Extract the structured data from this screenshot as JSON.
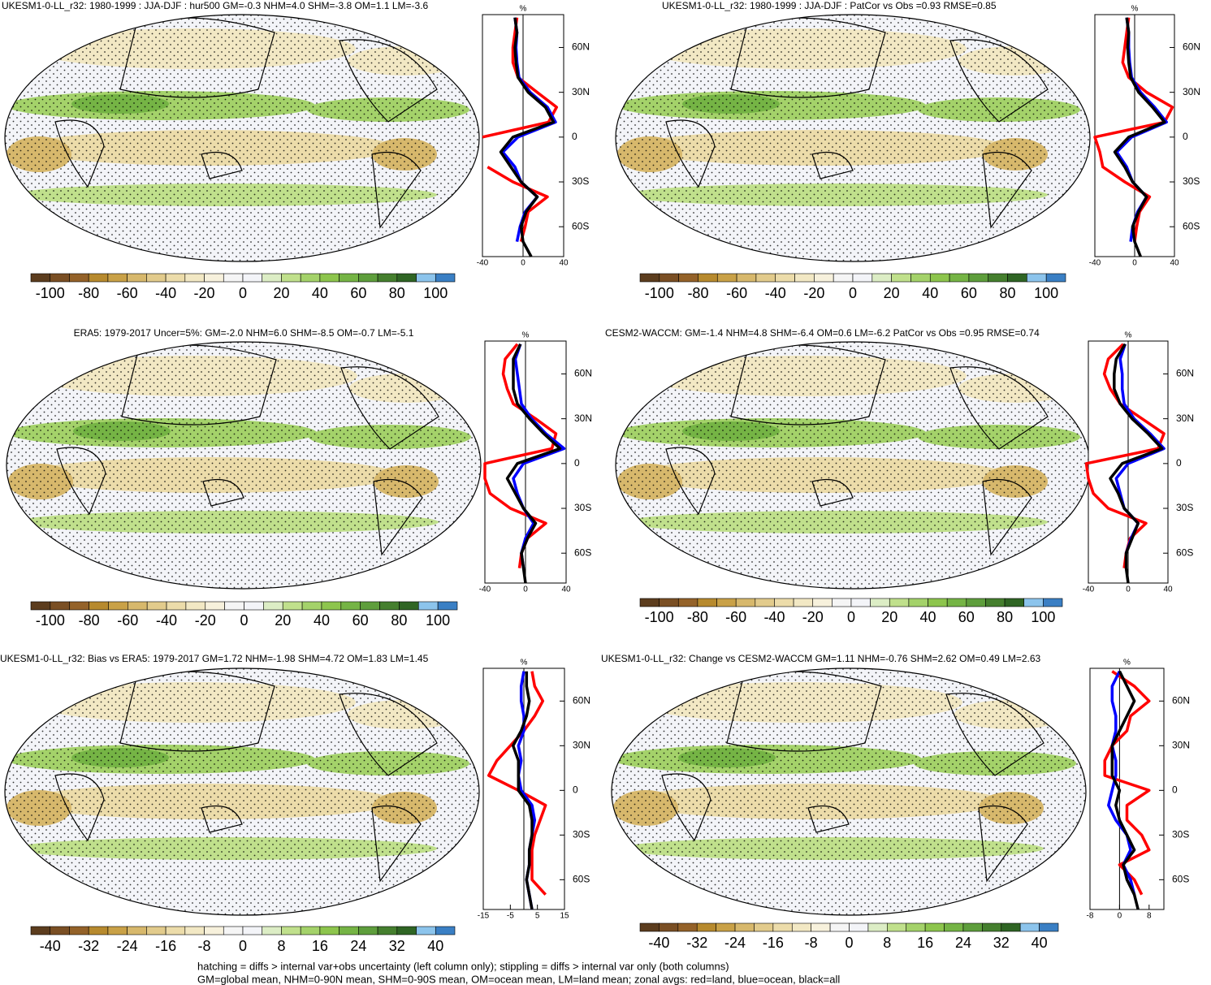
{
  "chart_data": [
    {
      "type": "line",
      "title": "UKESM1-0-LL_r32: 1980-1999 : JJA-DJF : hur500 GM=-0.3 NHM=4.0 SHM=-3.8 OM=1.1 LM=-3.6",
      "unit": "%",
      "y": [
        80,
        70,
        60,
        50,
        40,
        30,
        20,
        10,
        0,
        -10,
        -20,
        -30,
        -40,
        -50,
        -60,
        -70,
        -80
      ],
      "ylim": [
        -80,
        82
      ],
      "yticks": [
        {
          "value": 60,
          "label": "60N"
        },
        {
          "value": 30,
          "label": "30N"
        },
        0,
        {
          "value": -30,
          "label": "30S"
        },
        {
          "value": -60,
          "label": "60S"
        }
      ],
      "xlim": [
        -40,
        40
      ],
      "xticks": [
        -40,
        0,
        40
      ],
      "series": [
        {
          "color": "#ff0000",
          "values": [
            -6,
            -8,
            -10,
            -10,
            -5,
            14,
            33,
            25,
            -40,
            null,
            -35,
            -10,
            24,
            5,
            2,
            -2,
            null
          ]
        },
        {
          "color": "#0000ff",
          "values": [
            -8,
            -6,
            -7,
            -6,
            -4,
            7,
            24,
            32,
            -5,
            -20,
            -8,
            -2,
            14,
            2,
            -3,
            -6,
            null
          ]
        },
        {
          "color": "#000000",
          "values": [
            -8,
            -6,
            -8,
            -7,
            -5,
            5,
            22,
            30,
            -10,
            -22,
            -12,
            -2,
            14,
            3,
            -2,
            0,
            8
          ]
        }
      ],
      "colorbar": {
        "lim": [
          -110,
          110
        ],
        "ticks": [
          -100,
          -80,
          -60,
          -40,
          -20,
          0,
          20,
          40,
          60,
          80,
          100
        ],
        "colors": [
          "#5c3d1e",
          "#7a4f24",
          "#946229",
          "#b78a2e",
          "#c9a147",
          "#d7b86c",
          "#e2cb8c",
          "#ecdcaa",
          "#f2e8c4",
          "#f7f1dc",
          "#f5f5f5",
          "#f3f4f8",
          "#dcedc5",
          "#c0e08c",
          "#a4d26a",
          "#8dc54d",
          "#75b445",
          "#5e9e3c",
          "#457f2e",
          "#2f6524",
          "#8cc4ec",
          "#3a7fc4"
        ]
      }
    },
    {
      "type": "line",
      "title": "UKESM1-0-LL_r32: 1980-1999 : JJA-DJF : PatCor vs Obs =0.93 RMSE=0.85",
      "unit": "%",
      "y": [
        80,
        70,
        60,
        50,
        40,
        30,
        20,
        10,
        0,
        -10,
        -20,
        -30,
        -40,
        -50,
        -60,
        -70,
        -80
      ],
      "ylim": [
        -80,
        82
      ],
      "yticks": [
        {
          "value": 60,
          "label": "60N"
        },
        {
          "value": 30,
          "label": "30N"
        },
        0,
        {
          "value": -30,
          "label": "30S"
        },
        {
          "value": -60,
          "label": "60S"
        }
      ],
      "xlim": [
        -40,
        40
      ],
      "xticks": [
        -40,
        0,
        40
      ],
      "series": [
        {
          "color": "#ff0000",
          "values": [
            -6,
            -8,
            -10,
            -12,
            -6,
            12,
            38,
            30,
            -40,
            -35,
            -32,
            -10,
            15,
            5,
            2,
            0,
            null
          ]
        },
        {
          "color": "#0000ff",
          "values": [
            -8,
            -6,
            -6,
            -5,
            -3,
            6,
            20,
            32,
            -3,
            -18,
            -8,
            -2,
            12,
            3,
            -2,
            -4,
            null
          ]
        },
        {
          "color": "#000000",
          "values": [
            -8,
            -6,
            -7,
            -6,
            -4,
            4,
            18,
            30,
            -6,
            -20,
            -10,
            -2,
            12,
            4,
            -2,
            0,
            6
          ]
        }
      ],
      "colorbar": {
        "lim": [
          -110,
          110
        ],
        "ticks": [
          -100,
          -80,
          -60,
          -40,
          -20,
          0,
          20,
          40,
          60,
          80,
          100
        ],
        "colors": [
          "#5c3d1e",
          "#7a4f24",
          "#946229",
          "#b78a2e",
          "#c9a147",
          "#d7b86c",
          "#e2cb8c",
          "#ecdcaa",
          "#f2e8c4",
          "#f7f1dc",
          "#f5f5f5",
          "#f3f4f8",
          "#dcedc5",
          "#c0e08c",
          "#a4d26a",
          "#8dc54d",
          "#75b445",
          "#5e9e3c",
          "#457f2e",
          "#2f6524",
          "#8cc4ec",
          "#3a7fc4"
        ]
      }
    },
    {
      "type": "line",
      "title": "ERA5: 1979-2017 Uncer=5%: GM=-2.0 NHM=6.0 SHM=-8.5 OM=-0.7 LM=-5.1",
      "unit": "%",
      "y": [
        80,
        70,
        60,
        50,
        40,
        30,
        20,
        10,
        0,
        -10,
        -20,
        -30,
        -40,
        -50,
        -60,
        -70,
        -80
      ],
      "ylim": [
        -80,
        82
      ],
      "yticks": [
        {
          "value": 60,
          "label": "60N"
        },
        {
          "value": 30,
          "label": "30N"
        },
        0,
        {
          "value": -30,
          "label": "30S"
        },
        {
          "value": -60,
          "label": "60S"
        }
      ],
      "xlim": [
        -40,
        40
      ],
      "xticks": [
        -40,
        0,
        40
      ],
      "series": [
        {
          "color": "#ff0000",
          "values": [
            -8,
            -20,
            -22,
            -18,
            -12,
            10,
            30,
            26,
            -40,
            -40,
            -35,
            -15,
            20,
            2,
            -4,
            -6,
            null
          ]
        },
        {
          "color": "#0000ff",
          "values": [
            -5,
            -10,
            -8,
            -6,
            -4,
            6,
            20,
            38,
            -2,
            -12,
            -8,
            -2,
            8,
            0,
            -4,
            -2,
            null
          ]
        },
        {
          "color": "#000000",
          "values": [
            -5,
            -12,
            -12,
            -12,
            -8,
            4,
            18,
            34,
            -8,
            -18,
            -10,
            -2,
            10,
            2,
            -4,
            -2,
            0
          ]
        }
      ],
      "colorbar": {
        "lim": [
          -110,
          110
        ],
        "ticks": [
          -100,
          -80,
          -60,
          -40,
          -20,
          0,
          20,
          40,
          60,
          80,
          100
        ],
        "colors": [
          "#5c3d1e",
          "#7a4f24",
          "#946229",
          "#b78a2e",
          "#c9a147",
          "#d7b86c",
          "#e2cb8c",
          "#ecdcaa",
          "#f2e8c4",
          "#f7f1dc",
          "#f5f5f5",
          "#f3f4f8",
          "#dcedc5",
          "#c0e08c",
          "#a4d26a",
          "#8dc54d",
          "#75b445",
          "#5e9e3c",
          "#457f2e",
          "#2f6524",
          "#8cc4ec",
          "#3a7fc4"
        ]
      }
    },
    {
      "type": "line",
      "title": "CESM2-WACCM: GM=-1.4 NHM=4.8 SHM=-6.4 OM=0.6 LM=-6.2 PatCor vs Obs =0.95 RMSE=0.74",
      "unit": "%",
      "y": [
        80,
        70,
        60,
        50,
        40,
        30,
        20,
        10,
        0,
        -10,
        -20,
        -30,
        -40,
        -50,
        -60,
        -70,
        -80
      ],
      "ylim": [
        -80,
        82
      ],
      "yticks": [
        {
          "value": 60,
          "label": "60N"
        },
        {
          "value": 30,
          "label": "30N"
        },
        0,
        {
          "value": -30,
          "label": "30S"
        },
        {
          "value": -60,
          "label": "60S"
        }
      ],
      "xlim": [
        -40,
        40
      ],
      "xticks": [
        -40,
        0,
        40
      ],
      "series": [
        {
          "color": "#ff0000",
          "values": [
            -5,
            -20,
            -24,
            -18,
            -8,
            14,
            36,
            30,
            -42,
            -40,
            -35,
            -20,
            18,
            2,
            -2,
            -4,
            null
          ]
        },
        {
          "color": "#0000ff",
          "values": [
            -3,
            -8,
            -6,
            -6,
            -4,
            6,
            22,
            36,
            0,
            -12,
            -8,
            -4,
            10,
            3,
            -2,
            null,
            null
          ]
        },
        {
          "color": "#000000",
          "values": [
            -3,
            -12,
            -14,
            -14,
            -8,
            4,
            20,
            34,
            -6,
            -18,
            -10,
            -4,
            10,
            4,
            -2,
            -2,
            0
          ]
        }
      ],
      "colorbar": {
        "lim": [
          -110,
          110
        ],
        "ticks": [
          -100,
          -80,
          -60,
          -40,
          -20,
          0,
          20,
          40,
          60,
          80,
          100
        ],
        "colors": [
          "#5c3d1e",
          "#7a4f24",
          "#946229",
          "#b78a2e",
          "#c9a147",
          "#d7b86c",
          "#e2cb8c",
          "#ecdcaa",
          "#f2e8c4",
          "#f7f1dc",
          "#f5f5f5",
          "#f3f4f8",
          "#dcedc5",
          "#c0e08c",
          "#a4d26a",
          "#8dc54d",
          "#75b445",
          "#5e9e3c",
          "#457f2e",
          "#2f6524",
          "#8cc4ec",
          "#3a7fc4"
        ]
      }
    },
    {
      "type": "line",
      "title": "UKESM1-0-LL_r32: Bias vs ERA5: 1979-2017 GM=1.72 NHM=-1.98 SHM=4.72 OM=1.83 LM=1.45",
      "unit": "%",
      "y": [
        80,
        70,
        60,
        50,
        40,
        30,
        20,
        10,
        0,
        -10,
        -20,
        -30,
        -40,
        -50,
        -60,
        -70,
        -80
      ],
      "ylim": [
        -80,
        82
      ],
      "yticks": [
        {
          "value": 60,
          "label": "60N"
        },
        {
          "value": 30,
          "label": "30N"
        },
        0,
        {
          "value": -30,
          "label": "30S"
        },
        {
          "value": -60,
          "label": "60S"
        }
      ],
      "xlim": [
        -15,
        15
      ],
      "xticks": [
        -15,
        -5,
        5,
        15
      ],
      "series": [
        {
          "color": "#ff0000",
          "values": [
            3,
            4,
            7,
            4,
            0,
            -5,
            -10,
            -13,
            -2,
            8,
            6,
            4,
            3,
            3,
            3,
            8,
            null
          ]
        },
        {
          "color": "#0000ff",
          "values": [
            0,
            -1,
            -1,
            0,
            0,
            -2,
            -1,
            -2,
            -1,
            3,
            4,
            3,
            2,
            2,
            1,
            2,
            3
          ]
        },
        {
          "color": "#000000",
          "values": [
            1,
            1,
            2,
            1,
            -1,
            -4,
            -2,
            -2,
            -2,
            2,
            3,
            3,
            2,
            2,
            1,
            2,
            3
          ]
        }
      ],
      "colorbar": {
        "lim": [
          -44,
          44
        ],
        "ticks": [
          -40,
          -32,
          -24,
          -16,
          -8,
          0,
          8,
          16,
          24,
          32,
          40
        ],
        "colors": [
          "#5c3d1e",
          "#7a4f24",
          "#946229",
          "#b78a2e",
          "#c9a147",
          "#d7b86c",
          "#e2cb8c",
          "#ecdcaa",
          "#f2e8c4",
          "#f7f1dc",
          "#f5f5f5",
          "#f3f4f8",
          "#dcedc5",
          "#c0e08c",
          "#a4d26a",
          "#8dc54d",
          "#75b445",
          "#5e9e3c",
          "#457f2e",
          "#2f6524",
          "#8cc4ec",
          "#3a7fc4"
        ]
      }
    },
    {
      "type": "line",
      "title": "UKESM1-0-LL_r32: Change vs CESM2-WACCM GM=1.11 NHM=-0.76 SHM=2.62 OM=0.49 LM=2.63",
      "unit": "%",
      "y": [
        80,
        70,
        60,
        50,
        40,
        30,
        20,
        10,
        0,
        -10,
        -20,
        -30,
        -40,
        -50,
        -60,
        -70,
        -80
      ],
      "ylim": [
        -80,
        82
      ],
      "yticks": [
        {
          "value": 60,
          "label": "60N"
        },
        {
          "value": 30,
          "label": "30N"
        },
        0,
        {
          "value": -30,
          "label": "30S"
        },
        {
          "value": -60,
          "label": "60S"
        }
      ],
      "xlim": [
        -8,
        12
      ],
      "xticks": [
        -8,
        0,
        8
      ],
      "series": [
        {
          "color": "#ff0000",
          "values": [
            -2,
            4,
            8,
            3,
            2,
            -2,
            -4,
            -4,
            8,
            2,
            2,
            6,
            8,
            0,
            4,
            6,
            null
          ]
        },
        {
          "color": "#0000ff",
          "values": [
            0,
            -2,
            -2,
            -1,
            -1,
            -2,
            -1,
            -1,
            -2,
            -3,
            -1,
            2,
            3,
            1,
            3,
            4,
            null
          ]
        },
        {
          "color": "#000000",
          "values": [
            0,
            2,
            4,
            2,
            0,
            -2,
            -2,
            -2,
            0,
            -1,
            0,
            2,
            4,
            1,
            2,
            4,
            5
          ]
        }
      ],
      "colorbar": {
        "lim": [
          -44,
          44
        ],
        "ticks": [
          -40,
          -32,
          -24,
          -16,
          -8,
          0,
          8,
          16,
          24,
          32,
          40
        ],
        "colors": [
          "#5c3d1e",
          "#7a4f24",
          "#946229",
          "#b78a2e",
          "#c9a147",
          "#d7b86c",
          "#e2cb8c",
          "#ecdcaa",
          "#f2e8c4",
          "#f7f1dc",
          "#f5f5f5",
          "#f3f4f8",
          "#dcedc5",
          "#c0e08c",
          "#a4d26a",
          "#8dc54d",
          "#75b445",
          "#5e9e3c",
          "#457f2e",
          "#2f6524",
          "#8cc4ec",
          "#3a7fc4"
        ]
      }
    }
  ],
  "notes": [
    "hatching = diffs > internal var+obs uncertainty (left column only); stippling = diffs > internal var only (both columns)",
    "GM=global mean, NHM=0-90N mean, SHM=0-90S mean, OM=ocean mean, LM=land mean; zonal avgs: red=land, blue=ocean, black=all"
  ]
}
